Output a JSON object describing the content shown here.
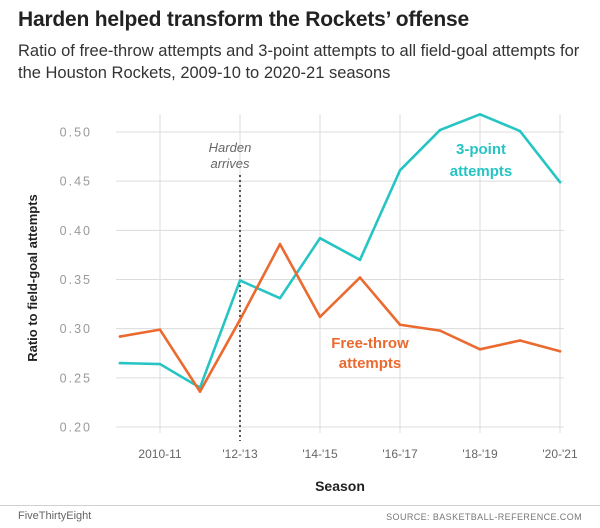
{
  "title": "Harden helped transform the Rockets’ offense",
  "subtitle": "Ratio of free-throw attempts and 3-point attempts to all field-goal attempts for the Houston Rockets, 2009-10 to 2020-21 seasons",
  "footer": {
    "brand": "FiveThirtyEight",
    "source": "SOURCE: BASKETBALL-REFERENCE.COM"
  },
  "annotation": {
    "line1": "Harden",
    "line2": "arrives",
    "at_index": 3
  },
  "colors": {
    "three_point": "#27c4c4",
    "free_throw": "#ea6a2f",
    "grid": "#dcdcdc",
    "event_line": "#222222"
  },
  "chart_data": {
    "type": "line",
    "xlabel": "Season",
    "ylabel": "Ratio to field-goal attempts",
    "ylim": [
      0.2,
      0.5
    ],
    "yticks": [
      0.2,
      0.25,
      0.3,
      0.35,
      0.4,
      0.45,
      0.5
    ],
    "ytick_labels": [
      "0.20",
      "0.25",
      "0.30",
      "0.35",
      "0.40",
      "0.45",
      "0.50"
    ],
    "x": [
      "2009-10",
      "2010-11",
      "2011-12",
      "2012-13",
      "2013-14",
      "2014-15",
      "2015-16",
      "2016-17",
      "2017-18",
      "2018-19",
      "2019-20",
      "2020-21"
    ],
    "xtick_labels": [
      {
        "index": 1,
        "label": "2010-11"
      },
      {
        "index": 3,
        "label": "'12-'13"
      },
      {
        "index": 5,
        "label": "'14-'15"
      },
      {
        "index": 7,
        "label": "'16-'17"
      },
      {
        "index": 9,
        "label": "'18-'19"
      },
      {
        "index": 11,
        "label": "'20-'21"
      }
    ],
    "grid": true,
    "series": [
      {
        "name": "3-point attempts",
        "label_line1": "3-point",
        "label_line2": "attempts",
        "color": "#27c4c4",
        "values": [
          0.265,
          0.264,
          0.24,
          0.349,
          0.331,
          0.392,
          0.37,
          0.461,
          0.502,
          0.518,
          0.501,
          0.449
        ]
      },
      {
        "name": "Free-throw attempts",
        "label_line1": "Free-throw",
        "label_line2": "attempts",
        "color": "#ea6a2f",
        "values": [
          0.292,
          0.299,
          0.236,
          0.309,
          0.386,
          0.312,
          0.352,
          0.304,
          0.298,
          0.279,
          0.288,
          0.277
        ]
      }
    ]
  }
}
